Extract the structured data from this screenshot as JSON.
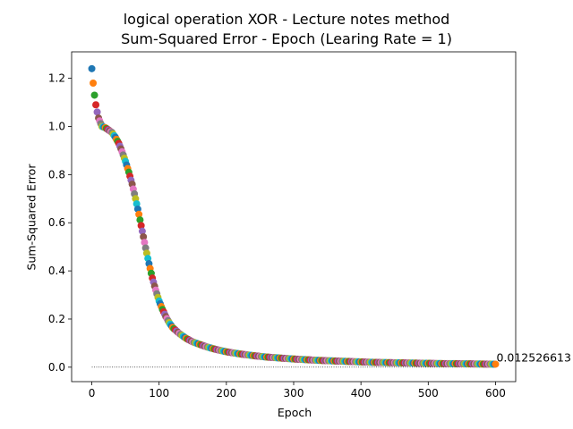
{
  "chart_data": {
    "type": "scatter",
    "title": "logical operation XOR - Lecture notes method",
    "subtitle": "Sum-Squared Error - Epoch (Learing Rate = 1)",
    "xlabel": "Epoch",
    "ylabel": "Sum-Squared Error",
    "xlim": [
      -30,
      630
    ],
    "ylim": [
      -0.06,
      1.31
    ],
    "xticks": [
      0,
      100,
      200,
      300,
      400,
      500,
      600
    ],
    "yticks": [
      0.0,
      0.2,
      0.4,
      0.6,
      0.8,
      1.0,
      1.2
    ],
    "ytick_labels": [
      "0.0",
      "0.2",
      "0.4",
      "0.6",
      "0.8",
      "1.0",
      "1.2"
    ],
    "grid": false,
    "legend": "none",
    "point_colors": [
      "#1f77b4",
      "#ff7f0e",
      "#2ca02c",
      "#d62728",
      "#9467bd",
      "#8c564b",
      "#e377c2",
      "#7f7f7f",
      "#bcbd22",
      "#17becf"
    ],
    "series": [
      {
        "x": [
          0,
          2,
          4,
          6,
          8,
          10,
          15,
          20,
          25,
          30,
          35,
          40,
          45,
          50,
          55,
          60,
          65,
          70,
          75,
          80,
          85,
          90,
          95,
          100,
          105,
          110,
          115,
          120,
          130,
          140,
          150,
          160,
          170,
          180,
          190,
          200,
          220,
          240,
          260,
          280,
          300,
          320,
          340,
          360,
          380,
          400,
          420,
          440,
          460,
          480,
          500,
          520,
          540,
          560,
          580,
          600
        ],
        "y": [
          1.24,
          1.18,
          1.13,
          1.09,
          1.06,
          1.035,
          1.0,
          0.995,
          0.985,
          0.975,
          0.955,
          0.93,
          0.895,
          0.855,
          0.81,
          0.76,
          0.7,
          0.635,
          0.565,
          0.495,
          0.43,
          0.37,
          0.32,
          0.275,
          0.24,
          0.21,
          0.185,
          0.165,
          0.14,
          0.12,
          0.105,
          0.095,
          0.085,
          0.077,
          0.07,
          0.064,
          0.055,
          0.048,
          0.042,
          0.038,
          0.034,
          0.031,
          0.028,
          0.026,
          0.024,
          0.022,
          0.02,
          0.019,
          0.018,
          0.017,
          0.016,
          0.015,
          0.0145,
          0.0138,
          0.0131,
          0.0125
        ]
      }
    ],
    "baseline": {
      "y": 0.0,
      "x": [
        0,
        600
      ],
      "style": "dotted"
    },
    "annotation": {
      "text": "0.012526613",
      "x": 600,
      "y": 0.0125
    }
  }
}
